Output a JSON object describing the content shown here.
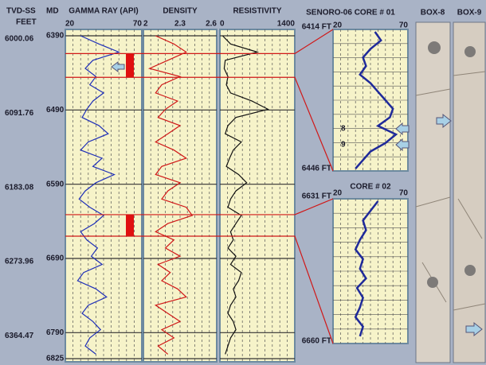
{
  "header": {
    "tvd_label": "TVD-SS",
    "feet_label": "FEET",
    "md_label": "MD"
  },
  "depth_axis": {
    "md_ticks": [
      6390,
      6490,
      6590,
      6690,
      6790,
      6825
    ],
    "tvd_labels": [
      6000.06,
      6091.76,
      6183.08,
      6273.96,
      6364.47
    ]
  },
  "tracks": [
    {
      "title": "GAMMA RAY (API)",
      "ticks": [
        20,
        70
      ],
      "range": [
        20,
        70
      ],
      "color": "#1f2fb8"
    },
    {
      "title": "DENSITY",
      "ticks": [
        2,
        2.3,
        2.6
      ],
      "range": [
        2,
        2.6
      ],
      "color": "#d01818"
    },
    {
      "title": "RESISTIVITY",
      "ticks": [
        0,
        1400
      ],
      "range": [
        0,
        1400
      ],
      "color": "#111111"
    }
  ],
  "log_data": {
    "md": [
      6390,
      6401,
      6412,
      6423,
      6434,
      6445,
      6456,
      6467,
      6478,
      6489,
      6500,
      6511,
      6522,
      6533,
      6544,
      6555,
      6566,
      6577,
      6588,
      6599,
      6610,
      6621,
      6632,
      6643,
      6654,
      6665,
      6676,
      6687,
      6698,
      6709,
      6720,
      6731,
      6742,
      6753,
      6764,
      6775,
      6786,
      6797,
      6808,
      6819
    ],
    "curves": [
      [
        30,
        42,
        55,
        38,
        33,
        40,
        36,
        45,
        38,
        34,
        31,
        42,
        48,
        35,
        30,
        44,
        38,
        52,
        40,
        33,
        29,
        36,
        45,
        39,
        30,
        34,
        41,
        37,
        44,
        32,
        28,
        40,
        47,
        35,
        31,
        38,
        43,
        36,
        33,
        40
      ],
      [
        2.1,
        2.25,
        2.35,
        2.2,
        2.05,
        2.3,
        2.15,
        2.1,
        2.28,
        2.18,
        2.12,
        2.3,
        2.2,
        2.1,
        2.25,
        2.35,
        2.15,
        2.1,
        2.3,
        2.2,
        2.15,
        2.35,
        2.4,
        2.2,
        2.1,
        2.25,
        2.18,
        2.3,
        2.12,
        2.22,
        2.15,
        2.28,
        2.35,
        2.1,
        2.2,
        2.3,
        2.15,
        2.25,
        2.12,
        2.2
      ],
      [
        50,
        200,
        700,
        100,
        80,
        150,
        120,
        200,
        600,
        900,
        300,
        150,
        100,
        400,
        250,
        180,
        120,
        350,
        500,
        300,
        200,
        150,
        400,
        300,
        200,
        250,
        150,
        300,
        200,
        400,
        350,
        250,
        300,
        200,
        150,
        250,
        300,
        200,
        150,
        100
      ]
    ]
  },
  "cores": [
    {
      "title": "SENORO-06 CORE # 01",
      "top_label": "6414 FT",
      "bottom_label": "6446 FT",
      "depth_range": [
        6414,
        6446
      ],
      "ticks": [
        20,
        70
      ],
      "depths": [
        6414,
        6416,
        6418,
        6420,
        6422,
        6424,
        6426,
        6428,
        6430,
        6432,
        6434,
        6436,
        6438,
        6440,
        6442,
        6444,
        6446
      ],
      "values": [
        48,
        52,
        45,
        40,
        42,
        38,
        45,
        50,
        55,
        60,
        58,
        50,
        62,
        55,
        45,
        40,
        35
      ],
      "markers": [
        "8",
        "9"
      ]
    },
    {
      "title": "CORE # 02",
      "top_label": "6631 FT",
      "bottom_label": "6660 FT",
      "depth_range": [
        6631,
        6660
      ],
      "ticks": [
        20,
        70
      ],
      "depths": [
        6631,
        6633,
        6635,
        6637,
        6639,
        6641,
        6643,
        6645,
        6647,
        6649,
        6651,
        6653,
        6655,
        6657,
        6659
      ],
      "values": [
        50,
        45,
        40,
        42,
        38,
        35,
        40,
        38,
        42,
        36,
        40,
        38,
        35,
        40,
        38
      ],
      "markers": []
    }
  ],
  "boxes": [
    "BOX-8",
    "BOX-9"
  ]
}
